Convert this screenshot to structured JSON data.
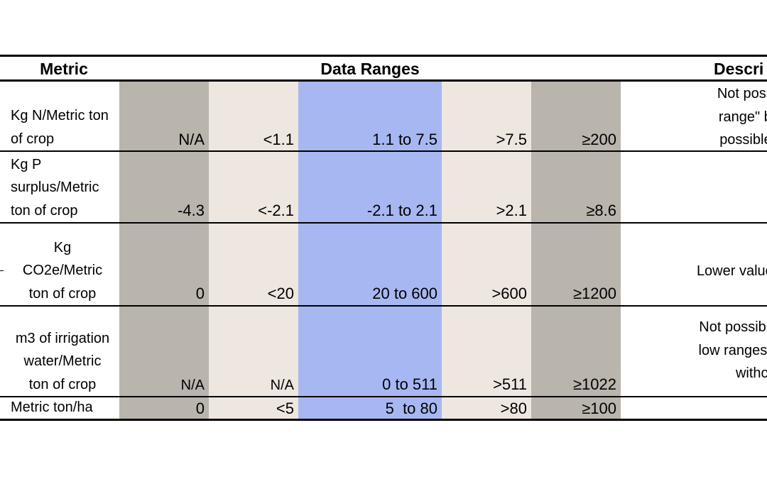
{
  "header": {
    "metric": "Metric",
    "data_ranges": "Data Ranges",
    "description": "Descri"
  },
  "rows": [
    {
      "metric_lines": [
        "Kg N/Metric ton",
        "of crop"
      ],
      "values": [
        "N/A",
        "<1.1",
        "1.1 to 7.5",
        ">7.5",
        "≥200"
      ],
      "description_lines": [
        "Not possible to",
        "range\" becaus",
        "possible witho"
      ]
    },
    {
      "metric_lines": [
        "Kg P",
        "surplus/Metric",
        "ton of crop"
      ],
      "values": [
        "-4.3",
        "<-2.1",
        "-2.1 to 2.1",
        ">2.1",
        "≥8.6"
      ],
      "description_lines": []
    },
    {
      "metric_lines": [
        "Kg",
        "CO2e/Metric",
        "ton of crop"
      ],
      "values": [
        "0",
        "<20",
        "20 to 600",
        ">600",
        "≥1200"
      ],
      "description_lines": [
        "Lower values are des"
      ]
    },
    {
      "metric_lines": [
        "m3 of irrigation",
        "water/Metric",
        "ton of crop"
      ],
      "values": [
        "N/A",
        "N/A",
        "0 to 511",
        ">511",
        "≥1022"
      ],
      "description_lines": [
        "Not possible to deter",
        "low ranges\" because",
        "without ir"
      ]
    },
    {
      "metric_lines": [
        "Metric ton/ha"
      ],
      "values": [
        "0",
        "<5",
        "5  to 80",
        ">80",
        "≥100"
      ],
      "description_lines": []
    }
  ],
  "colors": {
    "band_dark": "#b9b4ac",
    "band_light": "#ede7e0",
    "band_target": "#a7b7f1"
  }
}
